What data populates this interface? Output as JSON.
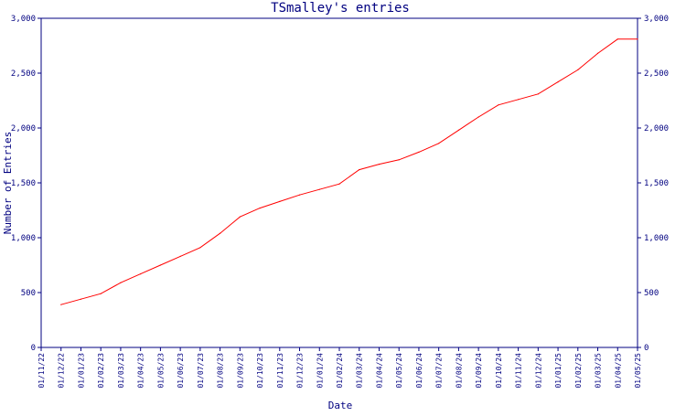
{
  "chart_data": {
    "type": "line",
    "title": "TSmalley's entries",
    "xlabel": "Date",
    "ylabel": "Number of Entries",
    "ylim": [
      0,
      3000
    ],
    "y_ticks": [
      0,
      500,
      1000,
      1500,
      2000,
      2500,
      3000
    ],
    "y_tick_labels": [
      "0",
      "500",
      "1,000",
      "1,500",
      "2,000",
      "2,500",
      "3,000"
    ],
    "x_tick_labels": [
      "01/11/22",
      "01/12/22",
      "01/01/23",
      "01/02/23",
      "01/03/23",
      "01/04/23",
      "01/05/23",
      "01/06/23",
      "01/07/23",
      "01/08/23",
      "01/09/23",
      "01/10/23",
      "01/11/23",
      "01/12/23",
      "01/01/24",
      "01/02/24",
      "01/03/24",
      "01/04/24",
      "01/05/24",
      "01/06/24",
      "01/07/24",
      "01/08/24",
      "01/09/24",
      "01/10/24",
      "01/11/24",
      "01/12/24",
      "01/01/25",
      "01/02/25",
      "01/03/25",
      "01/04/25",
      "01/05/25"
    ],
    "grid": false,
    "colors": {
      "line": "#ff0000",
      "axis": "#000080",
      "text": "#000080"
    },
    "series": [
      {
        "x": [
          "01/12/22",
          "01/01/23",
          "01/02/23",
          "01/03/23",
          "01/04/23",
          "01/05/23",
          "01/06/23",
          "01/07/23",
          "01/08/23",
          "01/09/23",
          "01/10/23",
          "01/11/23",
          "01/12/23",
          "01/01/24",
          "01/02/24",
          "01/03/24",
          "01/04/24",
          "01/05/24",
          "01/06/24",
          "01/07/24",
          "01/08/24",
          "01/09/24",
          "01/10/24",
          "01/11/24",
          "01/12/24",
          "01/01/25",
          "01/02/25",
          "01/03/25",
          "01/04/25",
          "01/05/25"
        ],
        "values": [
          390,
          440,
          490,
          590,
          670,
          750,
          830,
          910,
          1040,
          1190,
          1270,
          1330,
          1390,
          1440,
          1490,
          1620,
          1670,
          1710,
          1780,
          1860,
          1980,
          2100,
          2210,
          2260,
          2310,
          2420,
          2530,
          2680,
          2810,
          2810
        ]
      }
    ]
  }
}
